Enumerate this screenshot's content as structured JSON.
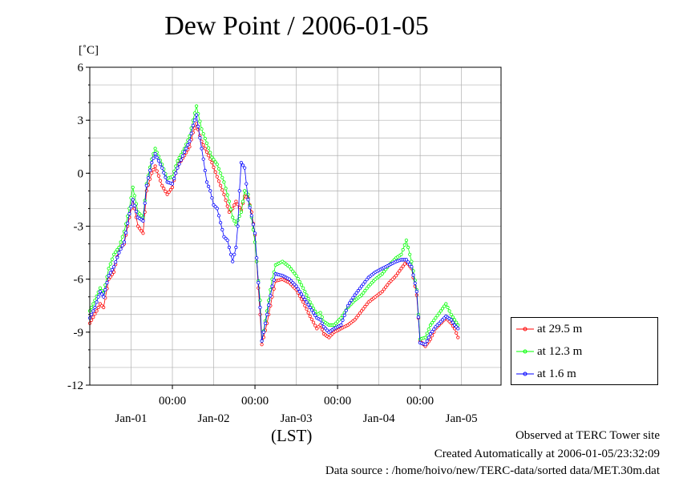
{
  "chart_data": {
    "type": "line",
    "title": "Dew Point / 2006-01-05",
    "ylabel": "[˚C]",
    "xlabel": "(LST)",
    "ylim": [
      -12,
      6
    ],
    "yticks": [
      6,
      3,
      0,
      -3,
      -6,
      -9,
      -12
    ],
    "xlim": [
      "2006-01-01 00:00",
      "2006-01-05 23:30"
    ],
    "xticks_time": [
      {
        "x": "2006-01-02 00:00",
        "label": "00:00"
      },
      {
        "x": "2006-01-03 00:00",
        "label": "00:00"
      },
      {
        "x": "2006-01-04 00:00",
        "label": "00:00"
      },
      {
        "x": "2006-01-05 00:00",
        "label": "00:00"
      }
    ],
    "xticks_date": [
      {
        "x": "2006-01-01 12:00",
        "label": "Jan-01"
      },
      {
        "x": "2006-01-02 12:00",
        "label": "Jan-02"
      },
      {
        "x": "2006-01-03 12:00",
        "label": "Jan-03"
      },
      {
        "x": "2006-01-04 12:00",
        "label": "Jan-04"
      },
      {
        "x": "2006-01-05 12:00",
        "label": "Jan-05"
      }
    ],
    "grid": true,
    "legend_position": "right-bottom",
    "series": [
      {
        "name": "at 29.5 m",
        "color": "#ff0000",
        "points": [
          [
            "2006-01-01 00:00",
            -8.5
          ],
          [
            "2006-01-01 02:00",
            -7.8
          ],
          [
            "2006-01-01 03:00",
            -7.4
          ],
          [
            "2006-01-01 04:00",
            -7.6
          ],
          [
            "2006-01-01 05:30",
            -6.0
          ],
          [
            "2006-01-01 07:00",
            -5.6
          ],
          [
            "2006-01-01 08:30",
            -4.3
          ],
          [
            "2006-01-01 10:00",
            -4.0
          ],
          [
            "2006-01-01 11:30",
            -2.5
          ],
          [
            "2006-01-01 12:30",
            -1.5
          ],
          [
            "2006-01-01 14:00",
            -3.0
          ],
          [
            "2006-01-01 15:30",
            -3.4
          ],
          [
            "2006-01-01 16:30",
            -1.0
          ],
          [
            "2006-01-01 18:00",
            0.0
          ],
          [
            "2006-01-01 19:00",
            0.4
          ],
          [
            "2006-01-01 21:00",
            -0.7
          ],
          [
            "2006-01-01 22:30",
            -1.2
          ],
          [
            "2006-01-02 00:00",
            -0.8
          ],
          [
            "2006-01-02 01:30",
            0.4
          ],
          [
            "2006-01-02 03:30",
            1.0
          ],
          [
            "2006-01-02 05:00",
            1.5
          ],
          [
            "2006-01-02 06:00",
            2.3
          ],
          [
            "2006-01-02 07:00",
            2.8
          ],
          [
            "2006-01-02 08:30",
            1.8
          ],
          [
            "2006-01-02 10:00",
            1.2
          ],
          [
            "2006-01-02 11:30",
            0.6
          ],
          [
            "2006-01-02 13:00",
            -0.2
          ],
          [
            "2006-01-02 15:00",
            -1.2
          ],
          [
            "2006-01-02 16:30",
            -2.2
          ],
          [
            "2006-01-02 17:30",
            -2.0
          ],
          [
            "2006-01-02 18:30",
            -1.6
          ],
          [
            "2006-01-02 20:00",
            -2.1
          ],
          [
            "2006-01-02 21:00",
            -1.3
          ],
          [
            "2006-01-02 22:00",
            -1.4
          ],
          [
            "2006-01-02 23:00",
            -2.2
          ],
          [
            "2006-01-02 23:59",
            -3.5
          ],
          [
            "2006-01-03 01:30",
            -8.0
          ],
          [
            "2006-01-03 02:00",
            -9.7
          ],
          [
            "2006-01-03 03:30",
            -8.5
          ],
          [
            "2006-01-03 05:00",
            -7.0
          ],
          [
            "2006-01-03 06:00",
            -6.1
          ],
          [
            "2006-01-03 08:00",
            -6.0
          ],
          [
            "2006-01-03 10:00",
            -6.2
          ],
          [
            "2006-01-03 12:00",
            -6.6
          ],
          [
            "2006-01-03 14:00",
            -7.3
          ],
          [
            "2006-01-03 16:00",
            -8.1
          ],
          [
            "2006-01-03 18:00",
            -8.8
          ],
          [
            "2006-01-03 19:00",
            -8.6
          ],
          [
            "2006-01-03 20:00",
            -9.1
          ],
          [
            "2006-01-03 21:30",
            -9.3
          ],
          [
            "2006-01-03 23:00",
            -9.0
          ],
          [
            "2006-01-04 01:00",
            -8.8
          ],
          [
            "2006-01-04 03:00",
            -8.6
          ],
          [
            "2006-01-04 05:00",
            -8.3
          ],
          [
            "2006-01-04 07:00",
            -7.8
          ],
          [
            "2006-01-04 09:00",
            -7.3
          ],
          [
            "2006-01-04 11:00",
            -7.0
          ],
          [
            "2006-01-04 13:00",
            -6.7
          ],
          [
            "2006-01-04 15:00",
            -6.2
          ],
          [
            "2006-01-04 17:00",
            -5.8
          ],
          [
            "2006-01-04 18:30",
            -5.4
          ],
          [
            "2006-01-04 20:00",
            -5.0
          ],
          [
            "2006-01-04 21:30",
            -5.4
          ],
          [
            "2006-01-04 23:00",
            -6.9
          ],
          [
            "2006-01-04 23:59",
            -9.5
          ],
          [
            "2006-01-05 01:30",
            -9.8
          ],
          [
            "2006-01-05 03:00",
            -9.4
          ],
          [
            "2006-01-05 04:30",
            -8.8
          ],
          [
            "2006-01-05 06:00",
            -8.5
          ],
          [
            "2006-01-05 07:30",
            -8.2
          ],
          [
            "2006-01-05 09:00",
            -8.5
          ],
          [
            "2006-01-05 10:00",
            -8.8
          ],
          [
            "2006-01-05 11:00",
            -9.3
          ]
        ]
      },
      {
        "name": "at 12.3 m",
        "color": "#00ff00",
        "points": [
          [
            "2006-01-01 00:00",
            -7.8
          ],
          [
            "2006-01-01 01:30",
            -7.2
          ],
          [
            "2006-01-01 03:00",
            -6.5
          ],
          [
            "2006-01-01 04:00",
            -6.8
          ],
          [
            "2006-01-01 05:30",
            -5.4
          ],
          [
            "2006-01-01 07:00",
            -4.6
          ],
          [
            "2006-01-01 08:30",
            -4.2
          ],
          [
            "2006-01-01 10:00",
            -3.3
          ],
          [
            "2006-01-01 11:30",
            -2.0
          ],
          [
            "2006-01-01 12:30",
            -0.8
          ],
          [
            "2006-01-01 14:00",
            -2.2
          ],
          [
            "2006-01-01 15:30",
            -2.5
          ],
          [
            "2006-01-01 16:30",
            -0.6
          ],
          [
            "2006-01-01 18:00",
            0.8
          ],
          [
            "2006-01-01 19:00",
            1.4
          ],
          [
            "2006-01-01 21:00",
            0.5
          ],
          [
            "2006-01-01 22:30",
            -0.3
          ],
          [
            "2006-01-02 00:00",
            -0.2
          ],
          [
            "2006-01-02 01:30",
            0.7
          ],
          [
            "2006-01-02 03:30",
            1.4
          ],
          [
            "2006-01-02 05:00",
            2.1
          ],
          [
            "2006-01-02 06:00",
            3.0
          ],
          [
            "2006-01-02 07:00",
            3.8
          ],
          [
            "2006-01-02 08:30",
            2.5
          ],
          [
            "2006-01-02 10:00",
            1.7
          ],
          [
            "2006-01-02 11:30",
            0.9
          ],
          [
            "2006-01-02 13:00",
            0.5
          ],
          [
            "2006-01-02 15:00",
            -0.5
          ],
          [
            "2006-01-02 16:30",
            -1.6
          ],
          [
            "2006-01-02 17:30",
            -2.5
          ],
          [
            "2006-01-02 18:30",
            -2.9
          ],
          [
            "2006-01-02 20:00",
            -2.2
          ],
          [
            "2006-01-02 21:00",
            -1.0
          ],
          [
            "2006-01-02 22:00",
            -1.2
          ],
          [
            "2006-01-02 23:00",
            -2.5
          ],
          [
            "2006-01-02 23:59",
            -3.9
          ],
          [
            "2006-01-03 01:30",
            -7.2
          ],
          [
            "2006-01-03 02:00",
            -9.5
          ],
          [
            "2006-01-03 03:30",
            -7.8
          ],
          [
            "2006-01-03 05:00",
            -6.0
          ],
          [
            "2006-01-03 06:00",
            -5.2
          ],
          [
            "2006-01-03 08:00",
            -5.0
          ],
          [
            "2006-01-03 10:00",
            -5.3
          ],
          [
            "2006-01-03 12:00",
            -5.8
          ],
          [
            "2006-01-03 14:00",
            -6.5
          ],
          [
            "2006-01-03 16:00",
            -7.3
          ],
          [
            "2006-01-03 18:00",
            -8.0
          ],
          [
            "2006-01-03 19:00",
            -7.9
          ],
          [
            "2006-01-03 20:00",
            -8.4
          ],
          [
            "2006-01-03 21:30",
            -8.6
          ],
          [
            "2006-01-03 23:00",
            -8.6
          ],
          [
            "2006-01-04 01:00",
            -8.2
          ],
          [
            "2006-01-04 03:00",
            -7.6
          ],
          [
            "2006-01-04 05:00",
            -7.2
          ],
          [
            "2006-01-04 07:00",
            -6.9
          ],
          [
            "2006-01-04 09:00",
            -6.4
          ],
          [
            "2006-01-04 11:00",
            -6.0
          ],
          [
            "2006-01-04 13:00",
            -5.7
          ],
          [
            "2006-01-04 15:00",
            -5.2
          ],
          [
            "2006-01-04 17:00",
            -4.8
          ],
          [
            "2006-01-04 18:30",
            -4.6
          ],
          [
            "2006-01-04 20:00",
            -3.8
          ],
          [
            "2006-01-04 21:30",
            -5.0
          ],
          [
            "2006-01-04 23:00",
            -6.6
          ],
          [
            "2006-01-04 23:59",
            -9.4
          ],
          [
            "2006-01-05 01:30",
            -9.3
          ],
          [
            "2006-01-05 03:00",
            -8.6
          ],
          [
            "2006-01-05 04:30",
            -8.2
          ],
          [
            "2006-01-05 06:00",
            -7.8
          ],
          [
            "2006-01-05 07:30",
            -7.4
          ],
          [
            "2006-01-05 09:00",
            -8.0
          ],
          [
            "2006-01-05 10:00",
            -8.3
          ],
          [
            "2006-01-05 11:00",
            -8.6
          ]
        ]
      },
      {
        "name": "at 1.6 m",
        "color": "#0000ff",
        "points": [
          [
            "2006-01-01 00:00",
            -8.2
          ],
          [
            "2006-01-01 01:30",
            -7.6
          ],
          [
            "2006-01-01 03:00",
            -6.7
          ],
          [
            "2006-01-01 04:00",
            -7.0
          ],
          [
            "2006-01-01 05:30",
            -5.8
          ],
          [
            "2006-01-01 07:00",
            -5.3
          ],
          [
            "2006-01-01 08:30",
            -4.5
          ],
          [
            "2006-01-01 10:00",
            -3.9
          ],
          [
            "2006-01-01 11:30",
            -2.3
          ],
          [
            "2006-01-01 12:30",
            -1.5
          ],
          [
            "2006-01-01 14:00",
            -2.5
          ],
          [
            "2006-01-01 15:30",
            -2.7
          ],
          [
            "2006-01-01 16:30",
            -0.7
          ],
          [
            "2006-01-01 18:00",
            0.6
          ],
          [
            "2006-01-01 19:00",
            1.1
          ],
          [
            "2006-01-01 21:00",
            0.3
          ],
          [
            "2006-01-01 22:30",
            -0.5
          ],
          [
            "2006-01-02 00:00",
            -0.6
          ],
          [
            "2006-01-02 01:30",
            0.3
          ],
          [
            "2006-01-02 03:30",
            1.2
          ],
          [
            "2006-01-02 05:00",
            1.8
          ],
          [
            "2006-01-02 06:00",
            2.7
          ],
          [
            "2006-01-02 07:00",
            3.3
          ],
          [
            "2006-01-02 08:00",
            2.0
          ],
          [
            "2006-01-02 09:00",
            0.8
          ],
          [
            "2006-01-02 10:00",
            -0.5
          ],
          [
            "2006-01-02 11:00",
            -1.0
          ],
          [
            "2006-01-02 12:00",
            -1.8
          ],
          [
            "2006-01-02 13:00",
            -2.0
          ],
          [
            "2006-01-02 14:00",
            -2.8
          ],
          [
            "2006-01-02 15:00",
            -3.6
          ],
          [
            "2006-01-02 16:00",
            -3.8
          ],
          [
            "2006-01-02 17:00",
            -4.6
          ],
          [
            "2006-01-02 17:30",
            -5.0
          ],
          [
            "2006-01-02 18:30",
            -4.2
          ],
          [
            "2006-01-02 19:00",
            -3.0
          ],
          [
            "2006-01-02 19:30",
            -1.0
          ],
          [
            "2006-01-02 20:00",
            0.6
          ],
          [
            "2006-01-02 21:00",
            0.3
          ],
          [
            "2006-01-02 22:00",
            -1.5
          ],
          [
            "2006-01-02 23:00",
            -2.4
          ],
          [
            "2006-01-02 23:59",
            -3.4
          ],
          [
            "2006-01-03 01:30",
            -7.6
          ],
          [
            "2006-01-03 02:00",
            -9.5
          ],
          [
            "2006-01-03 03:30",
            -8.0
          ],
          [
            "2006-01-03 05:00",
            -6.4
          ],
          [
            "2006-01-03 06:00",
            -5.7
          ],
          [
            "2006-01-03 08:00",
            -5.8
          ],
          [
            "2006-01-03 10:00",
            -6.0
          ],
          [
            "2006-01-03 12:00",
            -6.4
          ],
          [
            "2006-01-03 14:00",
            -7.0
          ],
          [
            "2006-01-03 16:00",
            -7.6
          ],
          [
            "2006-01-03 18:00",
            -8.2
          ],
          [
            "2006-01-03 19:00",
            -8.3
          ],
          [
            "2006-01-03 20:00",
            -8.7
          ],
          [
            "2006-01-03 21:30",
            -9.0
          ],
          [
            "2006-01-03 23:00",
            -8.8
          ],
          [
            "2006-01-04 01:00",
            -8.6
          ],
          [
            "2006-01-04 03:00",
            -7.5
          ],
          [
            "2006-01-04 05:00",
            -6.9
          ],
          [
            "2006-01-04 07:00",
            -6.4
          ],
          [
            "2006-01-04 09:00",
            -5.9
          ],
          [
            "2006-01-04 11:00",
            -5.6
          ],
          [
            "2006-01-04 13:00",
            -5.4
          ],
          [
            "2006-01-04 15:00",
            -5.2
          ],
          [
            "2006-01-04 17:00",
            -5.0
          ],
          [
            "2006-01-04 18:30",
            -4.9
          ],
          [
            "2006-01-04 20:00",
            -4.9
          ],
          [
            "2006-01-04 21:30",
            -5.3
          ],
          [
            "2006-01-04 23:00",
            -6.7
          ],
          [
            "2006-01-04 23:59",
            -9.6
          ],
          [
            "2006-01-05 01:30",
            -9.7
          ],
          [
            "2006-01-05 03:00",
            -9.1
          ],
          [
            "2006-01-05 04:30",
            -8.7
          ],
          [
            "2006-01-05 06:00",
            -8.4
          ],
          [
            "2006-01-05 07:30",
            -8.1
          ],
          [
            "2006-01-05 09:00",
            -8.3
          ],
          [
            "2006-01-05 10:00",
            -8.6
          ],
          [
            "2006-01-05 11:00",
            -8.8
          ]
        ]
      }
    ]
  },
  "footer": {
    "line1": "Observed at TERC Tower site",
    "line2": "Created Automatically at 2006-01-05/23:32:09",
    "line3": "Data source : /home/hoivo/new/TERC-data/sorted  data/MET.30m.dat"
  }
}
